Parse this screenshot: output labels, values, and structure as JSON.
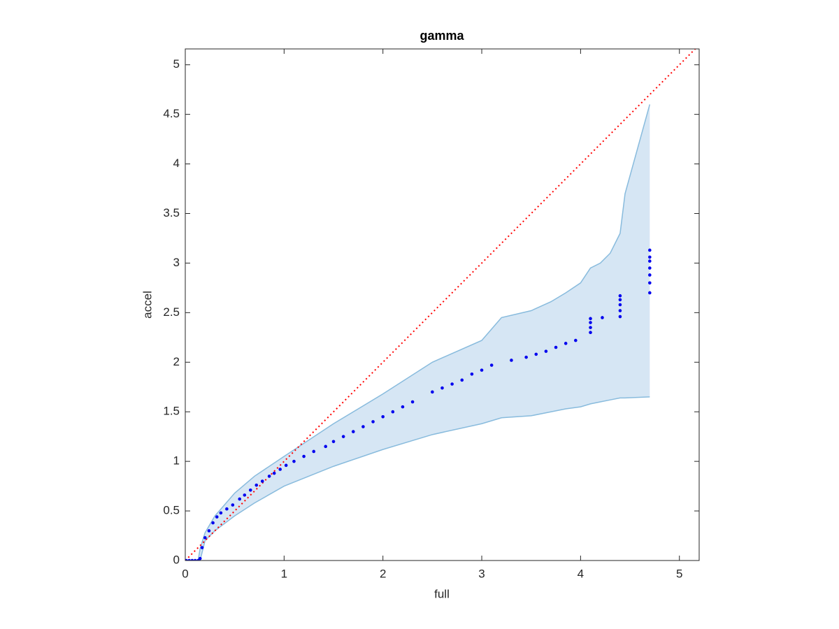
{
  "chart_data": {
    "type": "scatter",
    "title": "gamma",
    "xlabel": "full",
    "ylabel": "accel",
    "xlim": [
      0,
      5.2
    ],
    "ylim": [
      0,
      5.16
    ],
    "xticks": [
      0,
      1,
      2,
      3,
      4,
      5
    ],
    "yticks": [
      0,
      0.5,
      1,
      1.5,
      2,
      2.5,
      3,
      3.5,
      4,
      4.5,
      5
    ],
    "grid": false,
    "color": "#0000ee",
    "x": [
      0.01,
      0.04,
      0.07,
      0.1,
      0.13,
      0.15,
      0.17,
      0.2,
      0.24,
      0.28,
      0.32,
      0.36,
      0.42,
      0.48,
      0.55,
      0.6,
      0.66,
      0.72,
      0.78,
      0.85,
      0.9,
      0.96,
      1.02,
      1.1,
      1.2,
      1.3,
      1.42,
      1.5,
      1.6,
      1.7,
      1.8,
      1.9,
      2.0,
      2.1,
      2.2,
      2.3,
      2.5,
      2.6,
      2.7,
      2.8,
      2.9,
      3.0,
      3.1,
      3.3,
      3.45,
      3.55,
      3.65,
      3.75,
      3.85,
      3.95,
      4.1,
      4.1,
      4.1,
      4.1,
      4.22,
      4.4,
      4.4,
      4.4,
      4.4,
      4.4,
      4.7,
      4.7,
      4.7,
      4.7,
      4.7,
      4.7,
      4.7
    ],
    "y": [
      0,
      0,
      0,
      0,
      0,
      0.02,
      0.13,
      0.23,
      0.3,
      0.38,
      0.44,
      0.48,
      0.52,
      0.56,
      0.62,
      0.66,
      0.71,
      0.76,
      0.8,
      0.85,
      0.88,
      0.92,
      0.96,
      1.0,
      1.05,
      1.1,
      1.15,
      1.2,
      1.25,
      1.3,
      1.35,
      1.4,
      1.45,
      1.5,
      1.55,
      1.6,
      1.7,
      1.74,
      1.78,
      1.82,
      1.88,
      1.92,
      1.97,
      2.02,
      2.05,
      2.08,
      2.11,
      2.15,
      2.19,
      2.22,
      2.3,
      2.35,
      2.4,
      2.44,
      2.45,
      2.46,
      2.52,
      2.58,
      2.63,
      2.67,
      2.7,
      2.8,
      2.88,
      2.95,
      3.02,
      3.06,
      3.13
    ],
    "band": {
      "color": "#d6e6f4",
      "edge_color": "#88bbdd",
      "x": [
        0.13,
        0.15,
        0.2,
        0.3,
        0.5,
        0.7,
        1,
        1.5,
        2,
        2.5,
        3,
        3.2,
        3.5,
        3.7,
        3.85,
        4,
        4.1,
        4.2,
        4.3,
        4.4,
        4.45,
        4.7
      ],
      "lower": [
        0,
        0,
        0.2,
        0.3,
        0.45,
        0.58,
        0.75,
        0.95,
        1.12,
        1.27,
        1.38,
        1.44,
        1.46,
        1.5,
        1.53,
        1.55,
        1.58,
        1.6,
        1.62,
        1.64,
        1.64,
        1.65
      ],
      "upper": [
        0,
        0.12,
        0.28,
        0.45,
        0.68,
        0.85,
        1.05,
        1.38,
        1.68,
        2.0,
        2.22,
        2.45,
        2.52,
        2.61,
        2.7,
        2.8,
        2.95,
        3.0,
        3.1,
        3.3,
        3.7,
        4.6
      ]
    },
    "reference_line": {
      "color": "#ff0000",
      "x": [
        0,
        5.2
      ],
      "y": [
        0,
        5.2
      ]
    }
  }
}
